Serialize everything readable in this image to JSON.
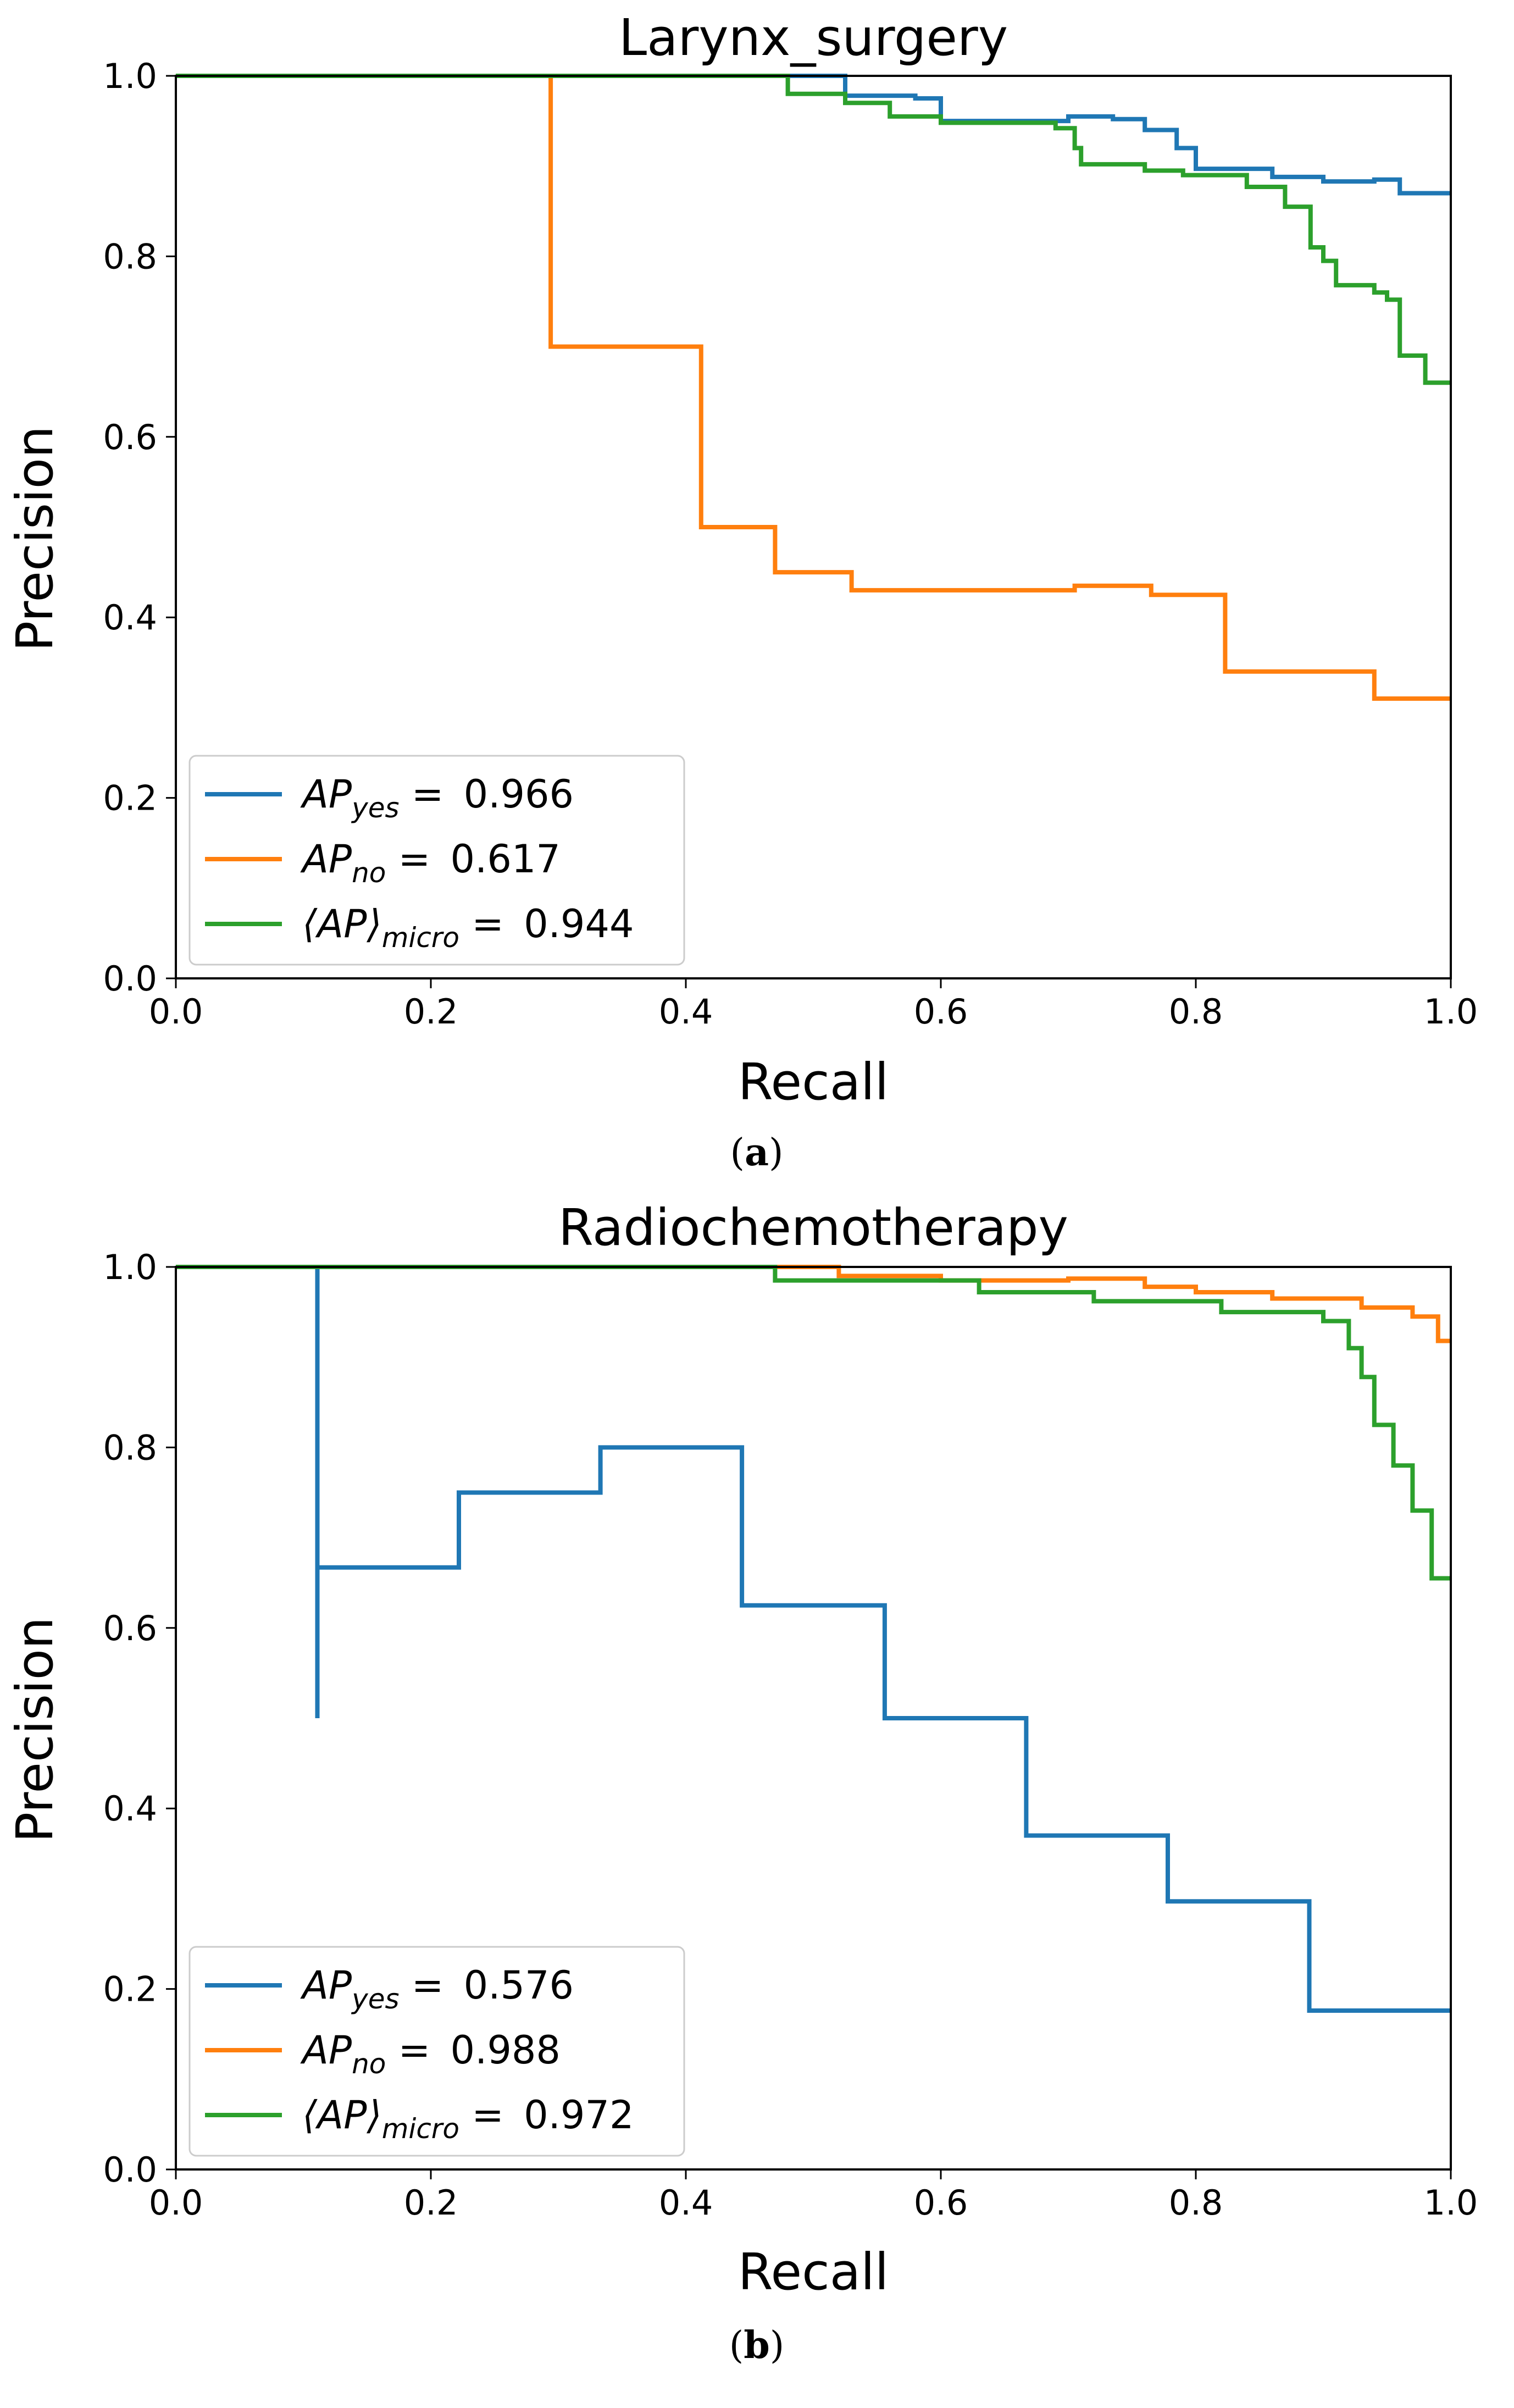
{
  "figure": {
    "captions": [
      {
        "open": "(",
        "letter": "a",
        "close": ")"
      },
      {
        "open": "(",
        "letter": "b",
        "close": ")"
      }
    ]
  },
  "chart_data": [
    {
      "type": "line",
      "step": true,
      "title": "Larynx_surgery",
      "xlabel": "Recall",
      "ylabel": "Precision",
      "xlim": [
        0.0,
        1.0
      ],
      "ylim": [
        0.0,
        1.0
      ],
      "xticks": [
        "0.0",
        "0.2",
        "0.4",
        "0.6",
        "0.8",
        "1.0"
      ],
      "yticks": [
        "0.0",
        "0.2",
        "0.4",
        "0.6",
        "0.8",
        "1.0"
      ],
      "legend_position": "lower-left",
      "series": [
        {
          "name": "yes",
          "color": "#1f77b4",
          "legend": {
            "base": "AP",
            "sub": "yes",
            "eq": " = ",
            "value": "0.966"
          },
          "points": [
            [
              0.0,
              1.0
            ],
            [
              0.525,
              1.0
            ],
            [
              0.525,
              0.978
            ],
            [
              0.58,
              0.978
            ],
            [
              0.58,
              0.975
            ],
            [
              0.6,
              0.975
            ],
            [
              0.6,
              0.95
            ],
            [
              0.7,
              0.95
            ],
            [
              0.7,
              0.955
            ],
            [
              0.735,
              0.955
            ],
            [
              0.735,
              0.952
            ],
            [
              0.76,
              0.952
            ],
            [
              0.76,
              0.94
            ],
            [
              0.785,
              0.94
            ],
            [
              0.785,
              0.92
            ],
            [
              0.8,
              0.92
            ],
            [
              0.8,
              0.897
            ],
            [
              0.86,
              0.897
            ],
            [
              0.86,
              0.888
            ],
            [
              0.9,
              0.888
            ],
            [
              0.9,
              0.883
            ],
            [
              0.94,
              0.883
            ],
            [
              0.94,
              0.885
            ],
            [
              0.96,
              0.885
            ],
            [
              0.96,
              0.87
            ],
            [
              1.0,
              0.87
            ]
          ]
        },
        {
          "name": "no",
          "color": "#ff7f0e",
          "legend": {
            "base": "AP",
            "sub": "no",
            "eq": " = ",
            "value": "0.617"
          },
          "points": [
            [
              0.0,
              1.0
            ],
            [
              0.294,
              1.0
            ],
            [
              0.294,
              0.7
            ],
            [
              0.412,
              0.7
            ],
            [
              0.412,
              0.5
            ],
            [
              0.47,
              0.5
            ],
            [
              0.47,
              0.45
            ],
            [
              0.53,
              0.45
            ],
            [
              0.53,
              0.43
            ],
            [
              0.705,
              0.43
            ],
            [
              0.705,
              0.435
            ],
            [
              0.765,
              0.435
            ],
            [
              0.765,
              0.425
            ],
            [
              0.823,
              0.425
            ],
            [
              0.823,
              0.34
            ],
            [
              0.94,
              0.34
            ],
            [
              0.94,
              0.31
            ],
            [
              1.0,
              0.31
            ]
          ]
        },
        {
          "name": "micro",
          "color": "#2ca02c",
          "legend": {
            "base": "⟨AP⟩",
            "sub": "micro",
            "eq": " = ",
            "value": "0.944"
          },
          "points": [
            [
              0.0,
              1.0
            ],
            [
              0.48,
              1.0
            ],
            [
              0.48,
              0.98
            ],
            [
              0.525,
              0.98
            ],
            [
              0.525,
              0.97
            ],
            [
              0.56,
              0.97
            ],
            [
              0.56,
              0.955
            ],
            [
              0.6,
              0.955
            ],
            [
              0.6,
              0.948
            ],
            [
              0.69,
              0.948
            ],
            [
              0.69,
              0.942
            ],
            [
              0.705,
              0.942
            ],
            [
              0.705,
              0.92
            ],
            [
              0.71,
              0.92
            ],
            [
              0.71,
              0.902
            ],
            [
              0.76,
              0.902
            ],
            [
              0.76,
              0.895
            ],
            [
              0.79,
              0.895
            ],
            [
              0.79,
              0.89
            ],
            [
              0.84,
              0.89
            ],
            [
              0.84,
              0.877
            ],
            [
              0.87,
              0.877
            ],
            [
              0.87,
              0.855
            ],
            [
              0.89,
              0.855
            ],
            [
              0.89,
              0.81
            ],
            [
              0.9,
              0.81
            ],
            [
              0.9,
              0.795
            ],
            [
              0.91,
              0.795
            ],
            [
              0.91,
              0.768
            ],
            [
              0.94,
              0.768
            ],
            [
              0.94,
              0.76
            ],
            [
              0.95,
              0.76
            ],
            [
              0.95,
              0.752
            ],
            [
              0.96,
              0.752
            ],
            [
              0.96,
              0.69
            ],
            [
              0.98,
              0.69
            ],
            [
              0.98,
              0.66
            ],
            [
              1.0,
              0.66
            ]
          ]
        }
      ]
    },
    {
      "type": "line",
      "step": true,
      "title": "Radiochemotherapy",
      "xlabel": "Recall",
      "ylabel": "Precision",
      "xlim": [
        0.0,
        1.0
      ],
      "ylim": [
        0.0,
        1.0
      ],
      "xticks": [
        "0.0",
        "0.2",
        "0.4",
        "0.6",
        "0.8",
        "1.0"
      ],
      "yticks": [
        "0.0",
        "0.2",
        "0.4",
        "0.6",
        "0.8",
        "1.0"
      ],
      "legend_position": "lower-left",
      "series": [
        {
          "name": "yes",
          "color": "#1f77b4",
          "legend": {
            "base": "AP",
            "sub": "yes",
            "eq": " = ",
            "value": "0.576"
          },
          "points": [
            [
              0.0,
              1.0
            ],
            [
              0.111,
              1.0
            ],
            [
              0.111,
              0.5
            ],
            [
              0.111,
              0.667
            ],
            [
              0.222,
              0.667
            ],
            [
              0.222,
              0.75
            ],
            [
              0.333,
              0.75
            ],
            [
              0.333,
              0.8
            ],
            [
              0.444,
              0.8
            ],
            [
              0.444,
              0.625
            ],
            [
              0.556,
              0.625
            ],
            [
              0.556,
              0.5
            ],
            [
              0.667,
              0.5
            ],
            [
              0.667,
              0.37
            ],
            [
              0.778,
              0.37
            ],
            [
              0.778,
              0.297
            ],
            [
              0.889,
              0.297
            ],
            [
              0.889,
              0.176
            ],
            [
              1.0,
              0.176
            ]
          ]
        },
        {
          "name": "no",
          "color": "#ff7f0e",
          "legend": {
            "base": "AP",
            "sub": "no",
            "eq": " = ",
            "value": "0.988"
          },
          "points": [
            [
              0.0,
              1.0
            ],
            [
              0.52,
              1.0
            ],
            [
              0.52,
              0.99
            ],
            [
              0.6,
              0.99
            ],
            [
              0.6,
              0.985
            ],
            [
              0.7,
              0.985
            ],
            [
              0.7,
              0.987
            ],
            [
              0.76,
              0.987
            ],
            [
              0.76,
              0.978
            ],
            [
              0.8,
              0.978
            ],
            [
              0.8,
              0.972
            ],
            [
              0.86,
              0.972
            ],
            [
              0.86,
              0.965
            ],
            [
              0.93,
              0.965
            ],
            [
              0.93,
              0.955
            ],
            [
              0.97,
              0.955
            ],
            [
              0.97,
              0.945
            ],
            [
              0.99,
              0.945
            ],
            [
              0.99,
              0.918
            ],
            [
              1.0,
              0.918
            ]
          ]
        },
        {
          "name": "micro",
          "color": "#2ca02c",
          "legend": {
            "base": "⟨AP⟩",
            "sub": "micro",
            "eq": " = ",
            "value": "0.972"
          },
          "points": [
            [
              0.0,
              1.0
            ],
            [
              0.47,
              1.0
            ],
            [
              0.47,
              0.985
            ],
            [
              0.63,
              0.985
            ],
            [
              0.63,
              0.972
            ],
            [
              0.72,
              0.972
            ],
            [
              0.72,
              0.962
            ],
            [
              0.82,
              0.962
            ],
            [
              0.82,
              0.95
            ],
            [
              0.9,
              0.95
            ],
            [
              0.9,
              0.94
            ],
            [
              0.92,
              0.94
            ],
            [
              0.92,
              0.91
            ],
            [
              0.93,
              0.91
            ],
            [
              0.93,
              0.878
            ],
            [
              0.94,
              0.878
            ],
            [
              0.94,
              0.825
            ],
            [
              0.955,
              0.825
            ],
            [
              0.955,
              0.78
            ],
            [
              0.97,
              0.78
            ],
            [
              0.97,
              0.73
            ],
            [
              0.985,
              0.73
            ],
            [
              0.985,
              0.655
            ],
            [
              1.0,
              0.655
            ]
          ]
        }
      ]
    }
  ]
}
